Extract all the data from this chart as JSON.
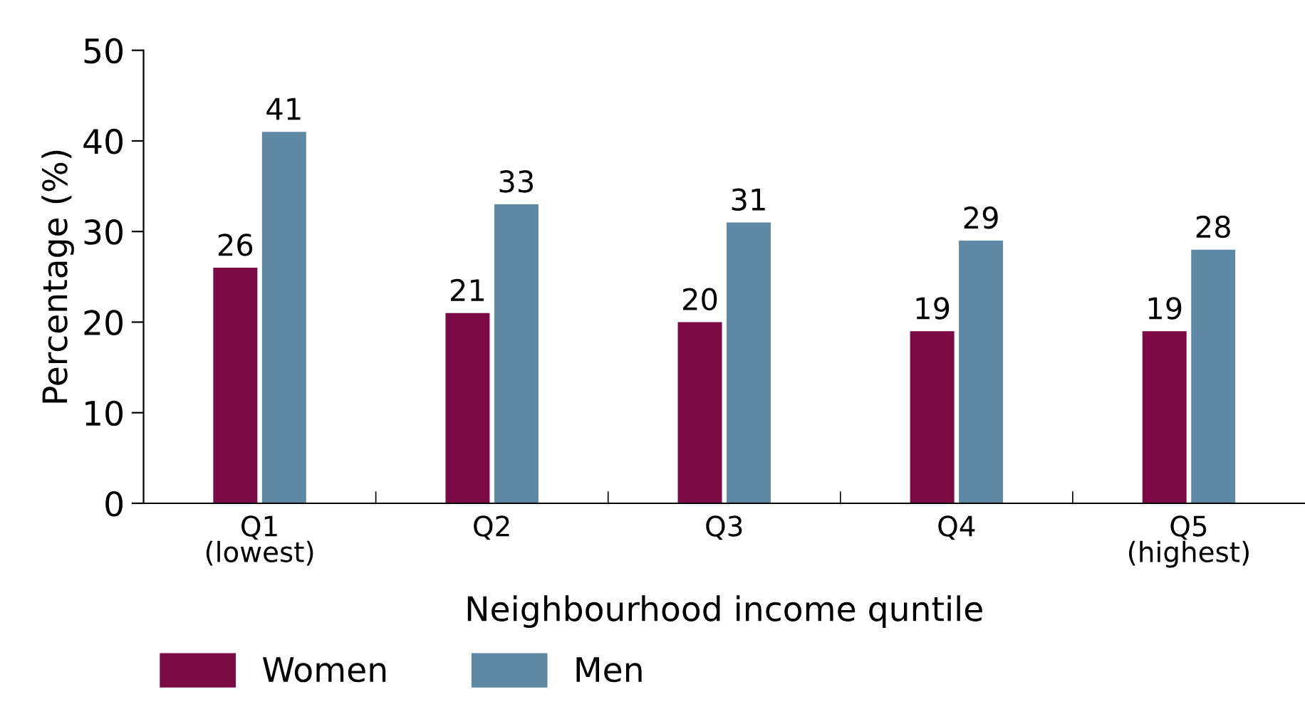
{
  "chart_data": {
    "type": "bar",
    "categories": [
      "Q1\n(lowest)",
      "Q2",
      "Q3",
      "Q4",
      "Q5\n(highest)"
    ],
    "series": [
      {
        "name": "Women",
        "color": "#7b0a45",
        "values": [
          26,
          21,
          20,
          19,
          19
        ]
      },
      {
        "name": "Men",
        "color": "#5e88a3",
        "values": [
          41,
          33,
          31,
          29,
          28
        ]
      }
    ],
    "xlabel": "Neighbourhood income quntile",
    "ylabel": "Percentage (%)",
    "ylim": [
      0,
      50
    ],
    "yticks": [
      0,
      10,
      20,
      30,
      40,
      50
    ],
    "data_labels": true,
    "grid": false,
    "legend": "bottom left"
  }
}
